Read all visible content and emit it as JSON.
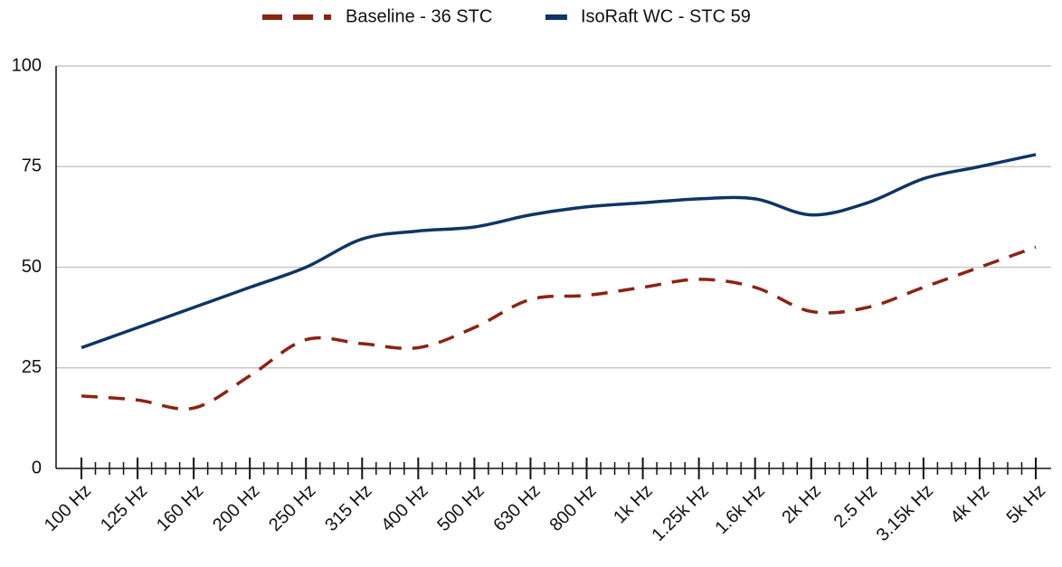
{
  "chart_data": {
    "type": "line",
    "categories": [
      "100 Hz",
      "125 Hz",
      "160 Hz",
      "200 Hz",
      "250 Hz",
      "315 Hz",
      "400 Hz",
      "500 Hz",
      "630 Hz",
      "800 Hz",
      "1k Hz",
      "1.25k Hz",
      "1.6k Hz",
      "2k Hz",
      "2.5 Hz",
      "3.15k Hz",
      "4k Hz",
      "5k Hz"
    ],
    "series": [
      {
        "name": "Baseline - 36 STC",
        "color": "#8b2312",
        "dashed": true,
        "values": [
          18,
          17,
          15,
          23,
          32,
          31,
          30,
          35,
          42,
          43,
          45,
          47,
          45,
          39,
          40,
          45,
          50,
          55
        ]
      },
      {
        "name": "IsoRaft WC - STC 59",
        "color": "#0f3565",
        "dashed": false,
        "values": [
          30,
          35,
          40,
          45,
          50,
          57,
          59,
          60,
          63,
          65,
          66,
          67,
          67,
          63,
          66,
          72,
          75,
          78
        ]
      }
    ],
    "ylim": [
      0,
      100
    ],
    "yticks": [
      0,
      25,
      50,
      75,
      100
    ],
    "grid": true,
    "legend": "top"
  }
}
